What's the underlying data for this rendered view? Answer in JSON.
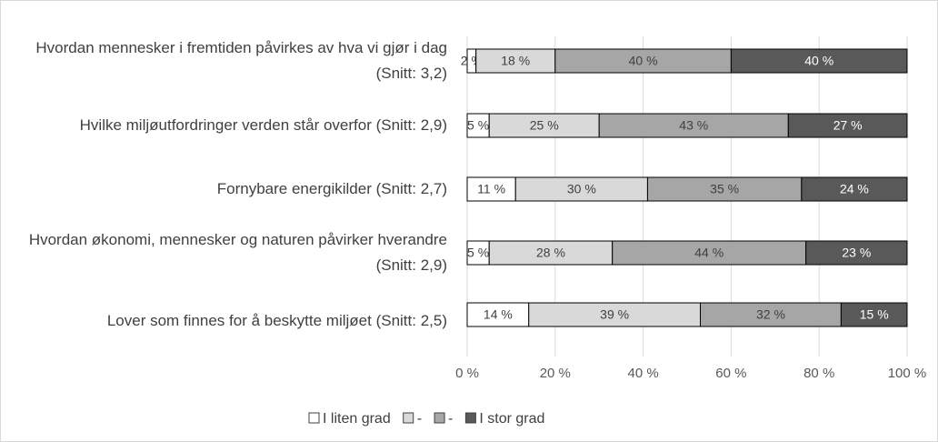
{
  "chart_data": {
    "type": "stacked_bar_horizontal",
    "categories": [
      "Hvordan mennesker i fremtiden påvirkes av hva vi gjør i dag (Snitt: 3,2)",
      "Hvilke miljøutfordringer verden står overfor (Snitt: 2,9)",
      "Fornybare energikilder (Snitt: 2,7)",
      "Hvordan økonomi, mennesker og naturen påvirker hverandre (Snitt: 2,9)",
      "Lover som finnes for å beskytte miljøet (Snitt: 2,5)"
    ],
    "series": [
      {
        "name": "I liten grad",
        "color": "#ffffff",
        "values": [
          2,
          5,
          11,
          5,
          14
        ],
        "value_labels": [
          "2 %",
          "5 %",
          "11 %",
          "5 %",
          "14 %"
        ]
      },
      {
        "name": "-",
        "color": "#d9d9d9",
        "values": [
          18,
          25,
          30,
          28,
          39
        ],
        "value_labels": [
          "18 %",
          "25 %",
          "30 %",
          "28 %",
          "39 %"
        ]
      },
      {
        "name": "-",
        "color": "#a6a6a6",
        "values": [
          40,
          43,
          35,
          44,
          32
        ],
        "value_labels": [
          "40 %",
          "43 %",
          "35 %",
          "44 %",
          "32 %"
        ]
      },
      {
        "name": "I stor grad",
        "color": "#595959",
        "values": [
          40,
          27,
          24,
          23,
          15
        ],
        "value_labels": [
          "40 %",
          "27 %",
          "24 %",
          "23 %",
          "15 %"
        ]
      }
    ],
    "xlim": [
      0,
      100
    ],
    "xticks": [
      {
        "value": 0,
        "label": "0 %"
      },
      {
        "value": 20,
        "label": "20 %"
      },
      {
        "value": 40,
        "label": "40 %"
      },
      {
        "value": 60,
        "label": "60 %"
      },
      {
        "value": 80,
        "label": "80 %"
      },
      {
        "value": 100,
        "label": "100 %"
      }
    ],
    "grid": true,
    "legend": "bottom"
  }
}
